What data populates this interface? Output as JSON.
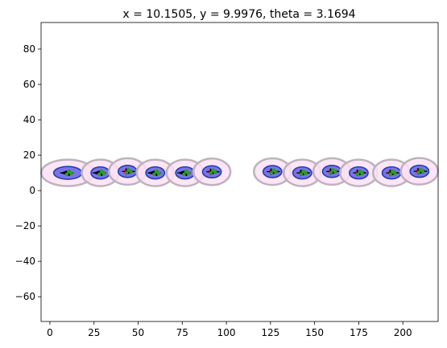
{
  "chart_data": {
    "type": "scatter",
    "title": "x = 10.1505, y = 9.9976, theta = 3.1694",
    "xlabel": "",
    "ylabel": "",
    "xlim": [
      -5,
      220
    ],
    "ylim": [
      -74,
      95
    ],
    "xticks": [
      0,
      25,
      50,
      75,
      100,
      125,
      150,
      175,
      200
    ],
    "yticks": [
      -60,
      -40,
      -20,
      0,
      20,
      40,
      60,
      80
    ],
    "grid": false,
    "points": [
      {
        "x": 10.15,
        "y": 10.0,
        "theta": 3.1694,
        "outer_rx": 15.0,
        "outer_ry": 7.5,
        "inner_rx": 8.0,
        "inner_ry": 3.6,
        "red_dx": 0.6
      },
      {
        "x": 28.6,
        "y": 10.0,
        "theta": 3.14,
        "outer_rx": 10.5,
        "outer_ry": 7.5,
        "inner_rx": 5.3,
        "inner_ry": 3.4,
        "red_dx": 0.6
      },
      {
        "x": 44.0,
        "y": 10.8,
        "theta": 0.0,
        "outer_rx": 10.5,
        "outer_ry": 7.5,
        "inner_rx": 5.3,
        "inner_ry": 3.4,
        "red_dx": -0.6
      },
      {
        "x": 59.7,
        "y": 10.0,
        "theta": 3.14,
        "outer_rx": 10.5,
        "outer_ry": 7.5,
        "inner_rx": 5.3,
        "inner_ry": 3.4,
        "red_dx": 0.6
      },
      {
        "x": 76.6,
        "y": 10.0,
        "theta": 3.14,
        "outer_rx": 10.5,
        "outer_ry": 7.5,
        "inner_rx": 5.3,
        "inner_ry": 3.4,
        "red_dx": 0.6
      },
      {
        "x": 91.8,
        "y": 10.6,
        "theta": 0.0,
        "outer_rx": 10.5,
        "outer_ry": 7.5,
        "inner_rx": 5.3,
        "inner_ry": 3.4,
        "red_dx": -0.6
      },
      {
        "x": 126.1,
        "y": 10.7,
        "theta": 0.0,
        "outer_rx": 10.5,
        "outer_ry": 7.5,
        "inner_rx": 5.3,
        "inner_ry": 3.4,
        "red_dx": -0.6
      },
      {
        "x": 143.0,
        "y": 10.0,
        "theta": 0.0,
        "outer_rx": 10.5,
        "outer_ry": 7.5,
        "inner_rx": 5.3,
        "inner_ry": 3.4,
        "red_dx": -0.6
      },
      {
        "x": 159.8,
        "y": 10.8,
        "theta": 0.0,
        "outer_rx": 10.5,
        "outer_ry": 7.5,
        "inner_rx": 5.3,
        "inner_ry": 3.4,
        "red_dx": -0.6
      },
      {
        "x": 175.0,
        "y": 10.0,
        "theta": 0.0,
        "outer_rx": 10.5,
        "outer_ry": 7.5,
        "inner_rx": 5.3,
        "inner_ry": 3.4,
        "red_dx": -0.6
      },
      {
        "x": 193.6,
        "y": 10.0,
        "theta": 0.0,
        "outer_rx": 10.5,
        "outer_ry": 7.5,
        "inner_rx": 5.3,
        "inner_ry": 3.4,
        "red_dx": -0.6
      },
      {
        "x": 209.4,
        "y": 10.9,
        "theta": 0.0,
        "outer_rx": 10.5,
        "outer_ry": 7.5,
        "inner_rx": 5.3,
        "inner_ry": 3.4,
        "red_dx": -0.6
      }
    ],
    "colors": {
      "outer_fill": "#fbe0f6",
      "outer_stroke": "#bdb3bd",
      "inner_fill": "#7b73e8",
      "inner_stroke": "#1f3fb0",
      "heading": "#000000",
      "green_dot": "#2a9d2a",
      "red_dot": "#e8212b",
      "axes": "#000000"
    }
  }
}
